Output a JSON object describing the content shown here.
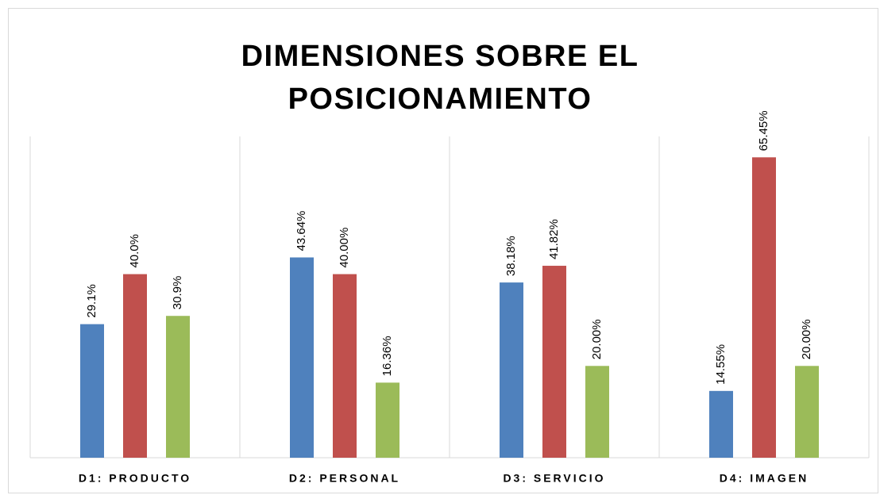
{
  "chart_data": {
    "type": "bar",
    "title": "DIMENSIONES SOBRE EL POSICIONAMIENTO",
    "categories": [
      "D1: PRODUCTO",
      "D2: PERSONAL",
      "D3: SERVICIO",
      "D4: IMAGEN"
    ],
    "series": [
      {
        "color": "#4f81bd",
        "values": [
          29.1,
          43.64,
          38.18,
          14.55
        ],
        "value_labels": [
          "29.1%",
          "43.64%",
          "38.18%",
          "14.55%"
        ]
      },
      {
        "color": "#c0504d",
        "values": [
          40.0,
          40.0,
          41.82,
          65.45
        ],
        "value_labels": [
          "40.0%",
          "40.00%",
          "41.82%",
          "65.45%"
        ]
      },
      {
        "color": "#9bbb59",
        "values": [
          30.9,
          16.36,
          20.0,
          20.0
        ],
        "value_labels": [
          "30.9%",
          "16.36%",
          "20.00%",
          "20.00%"
        ]
      }
    ],
    "ylim": [
      0,
      70
    ]
  }
}
